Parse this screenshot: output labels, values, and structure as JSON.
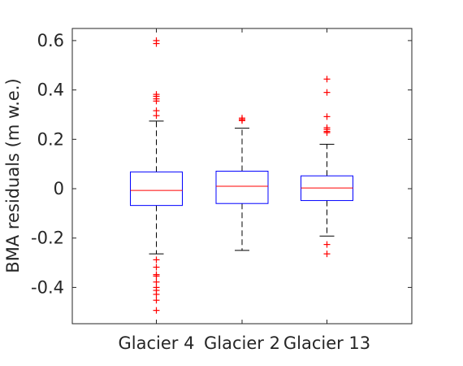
{
  "chart_data": {
    "type": "box",
    "title": "",
    "xlabel": "",
    "ylabel": "BMA residuals (m w.e.)",
    "ylim": [
      -0.55,
      0.65
    ],
    "yticks": [
      -0.4,
      -0.2,
      0,
      0.2,
      0.4,
      0.6
    ],
    "ytick_labels": [
      "-0.4",
      "-0.2",
      "0",
      "0.2",
      "0.4",
      "0.6"
    ],
    "grid": false,
    "categories": [
      "Glacier 4",
      "Glacier 2",
      "Glacier 13"
    ],
    "boxes": [
      {
        "category": "Glacier 4",
        "q1": -0.068,
        "median": -0.007,
        "q3": 0.068,
        "whisker_low": -0.264,
        "whisker_high": 0.274,
        "outliers": [
          0.6,
          0.588,
          0.382,
          0.374,
          0.364,
          0.355,
          0.316,
          0.296,
          -0.288,
          -0.318,
          -0.348,
          -0.354,
          -0.378,
          -0.4,
          -0.412,
          -0.428,
          -0.452,
          -0.493
        ]
      },
      {
        "category": "Glacier 2",
        "q1": -0.06,
        "median": 0.01,
        "q3": 0.071,
        "whisker_low": -0.25,
        "whisker_high": 0.245,
        "outliers": [
          0.286,
          0.28,
          0.276
        ]
      },
      {
        "category": "Glacier 13",
        "q1": -0.048,
        "median": 0.003,
        "q3": 0.052,
        "whisker_low": -0.192,
        "whisker_high": 0.18,
        "outliers": [
          0.444,
          0.39,
          0.292,
          0.247,
          0.24,
          0.232,
          0.227,
          -0.226,
          -0.264
        ]
      }
    ],
    "colors": {
      "box": "#0000ff",
      "median": "#ff0000",
      "whisker": "#000000",
      "outlier": "#ff0000",
      "axis": "#262626"
    }
  }
}
